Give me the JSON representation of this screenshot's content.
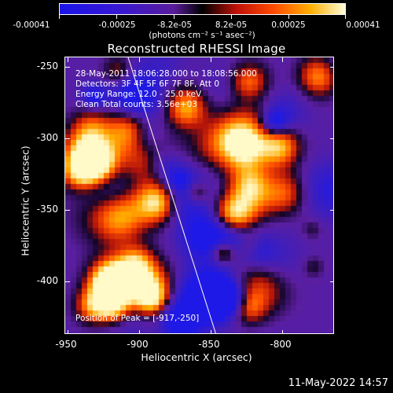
{
  "colorbar": {
    "tick_labels": [
      "-0.00041",
      "-0.00025",
      "-8.2e-05",
      "8.2e-05",
      "0.00025",
      "0.00041"
    ],
    "units_label": "(photons cm⁻² s⁻¹ asec⁻²)",
    "range": [
      -0.00041,
      0.00041
    ]
  },
  "plot": {
    "title": "Reconstructed RHESSI Image",
    "info_lines": [
      "28-May-2011 18:06:28.000 to 18:08:56.000",
      "Detectors: 3F 4F 5F 6F 7F 8F, Att 0",
      "Energy Range: 12.0 - 25.0 keV",
      "Clean    Total counts: 3.56e+03"
    ],
    "peak_label": "Position of Peak = [-917,-250]"
  },
  "axes": {
    "xlabel": "Heliocentric X (arcsec)",
    "ylabel": "Heliocentric Y (arcsec)",
    "x_ticks": [
      "-950",
      "-900",
      "-850",
      "-800"
    ],
    "y_ticks": [
      "-250",
      "-300",
      "-350",
      "-400"
    ],
    "xlim": [
      -953,
      -766
    ],
    "ylim": [
      -437,
      -244
    ]
  },
  "footer": {
    "timestamp": "11-May-2022 14:57"
  },
  "colors": {
    "background": "#000000",
    "axes": "#ffffff",
    "limb_line": "#ffffff"
  }
}
